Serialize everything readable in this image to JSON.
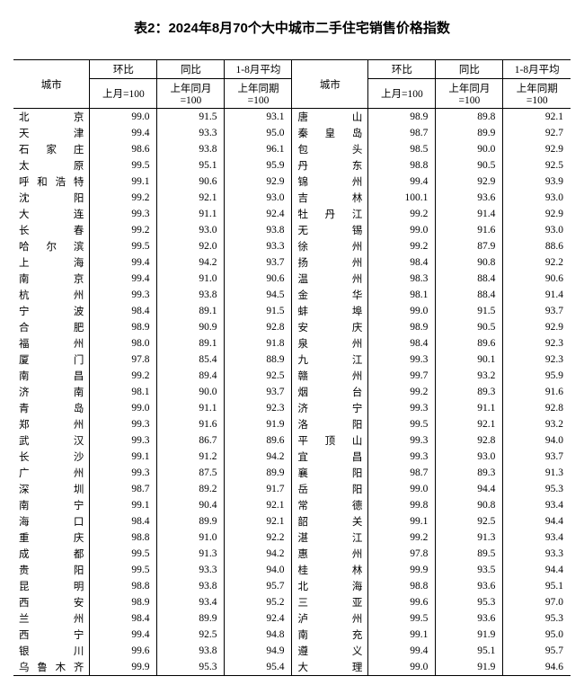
{
  "title": "表2：2024年8月70个大中城市二手住宅销售价格指数",
  "headers": {
    "city": "城市",
    "mom": "环比",
    "yoy": "同比",
    "avg": "1-8月平均",
    "mom_sub": "上月=100",
    "yoy_sub": "上年同月=100",
    "avg_sub": "上年同期=100"
  },
  "left": [
    {
      "c": "北京",
      "m": "99.0",
      "y": "91.5",
      "a": "93.1"
    },
    {
      "c": "天津",
      "m": "99.4",
      "y": "93.3",
      "a": "95.0"
    },
    {
      "c": "石家庄",
      "m": "98.6",
      "y": "93.8",
      "a": "96.1"
    },
    {
      "c": "太原",
      "m": "99.5",
      "y": "95.1",
      "a": "95.9"
    },
    {
      "c": "呼和浩特",
      "m": "99.1",
      "y": "90.6",
      "a": "92.9"
    },
    {
      "c": "沈阳",
      "m": "99.2",
      "y": "92.1",
      "a": "93.0"
    },
    {
      "c": "大连",
      "m": "99.3",
      "y": "91.1",
      "a": "92.4"
    },
    {
      "c": "长春",
      "m": "99.2",
      "y": "93.0",
      "a": "93.8"
    },
    {
      "c": "哈尔滨",
      "m": "99.5",
      "y": "92.0",
      "a": "93.3"
    },
    {
      "c": "上海",
      "m": "99.4",
      "y": "94.2",
      "a": "93.7"
    },
    {
      "c": "南京",
      "m": "99.4",
      "y": "91.0",
      "a": "90.6"
    },
    {
      "c": "杭州",
      "m": "99.3",
      "y": "93.8",
      "a": "94.5"
    },
    {
      "c": "宁波",
      "m": "98.4",
      "y": "89.1",
      "a": "91.5"
    },
    {
      "c": "合肥",
      "m": "98.9",
      "y": "90.9",
      "a": "92.8"
    },
    {
      "c": "福州",
      "m": "98.0",
      "y": "89.1",
      "a": "91.8"
    },
    {
      "c": "厦门",
      "m": "97.8",
      "y": "85.4",
      "a": "88.9"
    },
    {
      "c": "南昌",
      "m": "99.2",
      "y": "89.4",
      "a": "92.5"
    },
    {
      "c": "济南",
      "m": "98.1",
      "y": "90.0",
      "a": "93.7"
    },
    {
      "c": "青岛",
      "m": "99.0",
      "y": "91.1",
      "a": "92.3"
    },
    {
      "c": "郑州",
      "m": "99.3",
      "y": "91.6",
      "a": "91.9"
    },
    {
      "c": "武汉",
      "m": "99.3",
      "y": "86.7",
      "a": "89.6"
    },
    {
      "c": "长沙",
      "m": "99.1",
      "y": "91.2",
      "a": "94.2"
    },
    {
      "c": "广州",
      "m": "99.3",
      "y": "87.5",
      "a": "89.9"
    },
    {
      "c": "深圳",
      "m": "98.7",
      "y": "89.2",
      "a": "91.7"
    },
    {
      "c": "南宁",
      "m": "99.1",
      "y": "90.4",
      "a": "92.1"
    },
    {
      "c": "海口",
      "m": "98.4",
      "y": "89.9",
      "a": "92.1"
    },
    {
      "c": "重庆",
      "m": "98.8",
      "y": "91.0",
      "a": "92.2"
    },
    {
      "c": "成都",
      "m": "99.5",
      "y": "91.3",
      "a": "94.2"
    },
    {
      "c": "贵阳",
      "m": "99.5",
      "y": "93.3",
      "a": "94.0"
    },
    {
      "c": "昆明",
      "m": "98.8",
      "y": "93.8",
      "a": "95.7"
    },
    {
      "c": "西安",
      "m": "98.9",
      "y": "93.4",
      "a": "95.2"
    },
    {
      "c": "兰州",
      "m": "98.4",
      "y": "89.9",
      "a": "92.4"
    },
    {
      "c": "西宁",
      "m": "99.4",
      "y": "92.5",
      "a": "94.8"
    },
    {
      "c": "银川",
      "m": "99.6",
      "y": "93.8",
      "a": "94.9"
    },
    {
      "c": "乌鲁木齐",
      "m": "99.9",
      "y": "95.3",
      "a": "95.4"
    }
  ],
  "right": [
    {
      "c": "唐山",
      "m": "98.9",
      "y": "89.8",
      "a": "92.1"
    },
    {
      "c": "秦皇岛",
      "m": "98.7",
      "y": "89.9",
      "a": "92.7"
    },
    {
      "c": "包头",
      "m": "98.5",
      "y": "90.0",
      "a": "92.9"
    },
    {
      "c": "丹东",
      "m": "98.8",
      "y": "90.5",
      "a": "92.5"
    },
    {
      "c": "锦州",
      "m": "99.4",
      "y": "92.9",
      "a": "93.9"
    },
    {
      "c": "吉林",
      "m": "100.1",
      "y": "93.6",
      "a": "93.0"
    },
    {
      "c": "牡丹江",
      "m": "99.2",
      "y": "91.4",
      "a": "92.9"
    },
    {
      "c": "无锡",
      "m": "99.0",
      "y": "91.6",
      "a": "93.0"
    },
    {
      "c": "徐州",
      "m": "99.2",
      "y": "87.9",
      "a": "88.6"
    },
    {
      "c": "扬州",
      "m": "98.4",
      "y": "90.8",
      "a": "92.2"
    },
    {
      "c": "温州",
      "m": "98.3",
      "y": "88.4",
      "a": "90.6"
    },
    {
      "c": "金华",
      "m": "98.1",
      "y": "88.4",
      "a": "91.4"
    },
    {
      "c": "蚌埠",
      "m": "99.0",
      "y": "91.5",
      "a": "93.7"
    },
    {
      "c": "安庆",
      "m": "98.9",
      "y": "90.5",
      "a": "92.9"
    },
    {
      "c": "泉州",
      "m": "98.4",
      "y": "89.6",
      "a": "92.3"
    },
    {
      "c": "九江",
      "m": "99.3",
      "y": "90.1",
      "a": "92.3"
    },
    {
      "c": "赣州",
      "m": "99.7",
      "y": "93.2",
      "a": "95.9"
    },
    {
      "c": "烟台",
      "m": "99.2",
      "y": "89.3",
      "a": "91.6"
    },
    {
      "c": "济宁",
      "m": "99.3",
      "y": "91.1",
      "a": "92.8"
    },
    {
      "c": "洛阳",
      "m": "99.5",
      "y": "92.1",
      "a": "93.2"
    },
    {
      "c": "平顶山",
      "m": "99.3",
      "y": "92.8",
      "a": "94.0"
    },
    {
      "c": "宜昌",
      "m": "99.3",
      "y": "93.0",
      "a": "93.7"
    },
    {
      "c": "襄阳",
      "m": "98.7",
      "y": "89.3",
      "a": "91.3"
    },
    {
      "c": "岳阳",
      "m": "99.0",
      "y": "94.4",
      "a": "95.3"
    },
    {
      "c": "常德",
      "m": "99.8",
      "y": "90.8",
      "a": "93.4"
    },
    {
      "c": "韶关",
      "m": "99.1",
      "y": "92.5",
      "a": "94.4"
    },
    {
      "c": "湛江",
      "m": "99.2",
      "y": "91.3",
      "a": "93.4"
    },
    {
      "c": "惠州",
      "m": "97.8",
      "y": "89.5",
      "a": "93.3"
    },
    {
      "c": "桂林",
      "m": "99.9",
      "y": "93.5",
      "a": "94.4"
    },
    {
      "c": "北海",
      "m": "98.8",
      "y": "93.6",
      "a": "95.1"
    },
    {
      "c": "三亚",
      "m": "99.6",
      "y": "95.3",
      "a": "97.0"
    },
    {
      "c": "泸州",
      "m": "99.5",
      "y": "93.6",
      "a": "95.3"
    },
    {
      "c": "南充",
      "m": "99.1",
      "y": "91.9",
      "a": "95.0"
    },
    {
      "c": "遵义",
      "m": "99.4",
      "y": "95.1",
      "a": "95.7"
    },
    {
      "c": "大理",
      "m": "99.0",
      "y": "91.9",
      "a": "94.6"
    }
  ]
}
